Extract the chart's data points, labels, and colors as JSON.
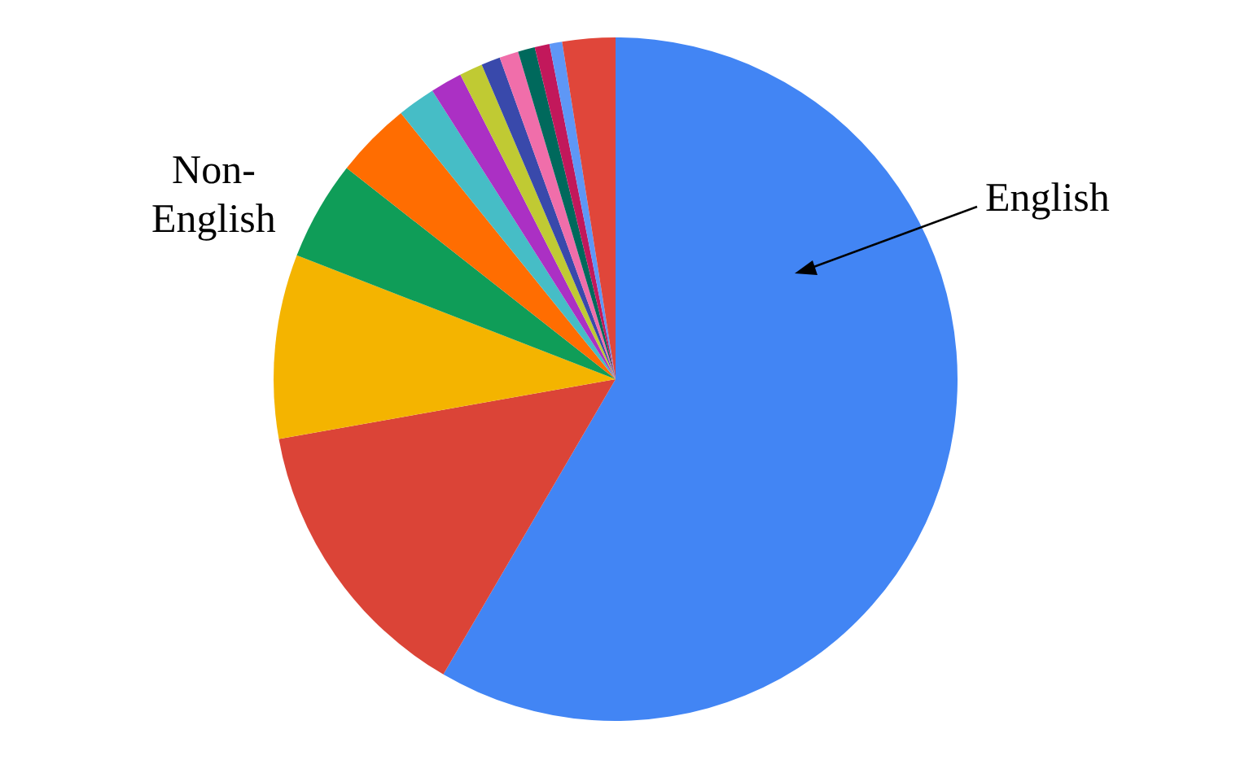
{
  "chart_data": {
    "type": "pie",
    "categories": [
      null,
      null,
      null,
      null,
      null,
      null,
      null,
      null,
      null,
      null,
      null,
      null,
      null,
      null
    ],
    "values": [
      58.4,
      13.8,
      8.7,
      4.7,
      3.6,
      1.8,
      1.5,
      1.1,
      0.9,
      0.9,
      0.8,
      0.7,
      0.6,
      2.5
    ],
    "colors": [
      "#4285f4",
      "#db4437",
      "#f4b400",
      "#0f9d58",
      "#ff6d01",
      "#46bdc6",
      "#ab30c4",
      "#c0ca33",
      "#3949ab",
      "#f06eaa",
      "#00695c",
      "#c2185b",
      "#5e97f6",
      "#e0463a"
    ],
    "annotations": [
      "English",
      "Non-\nEnglish"
    ]
  }
}
